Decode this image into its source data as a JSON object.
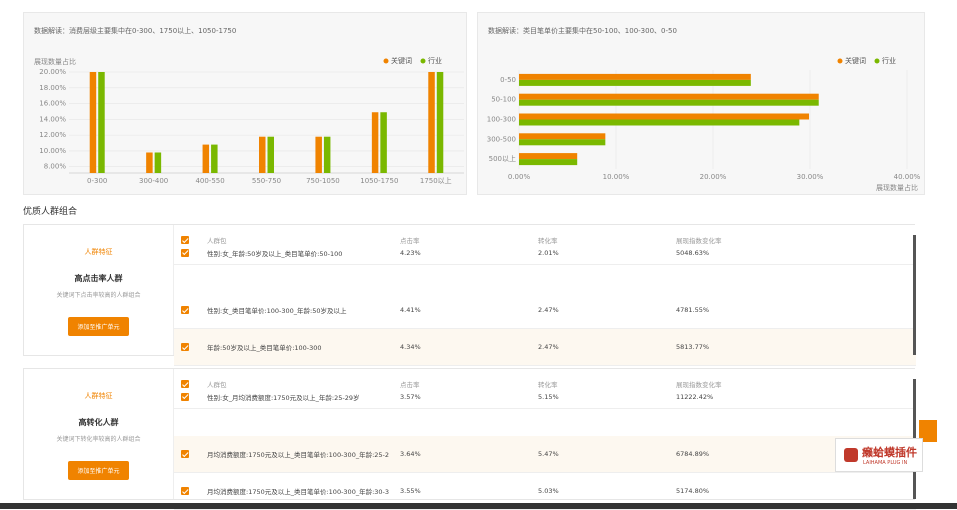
{
  "chart_data": [
    {
      "type": "bar",
      "title": "数据解读：消费层级主要集中在0-300、1750以上、1050-1750",
      "y_label": "展现数量占比",
      "categories": [
        "0-300",
        "300-400",
        "400-550",
        "550-750",
        "750-1050",
        "1050-1750",
        "1750以上"
      ],
      "series": [
        {
          "name": "关键词",
          "color": "#f08300",
          "values": [
            20,
            9.8,
            10.8,
            11.8,
            11.8,
            14.9,
            20
          ]
        },
        {
          "name": "行业",
          "color": "#7ab800",
          "values": [
            20,
            9.8,
            10.8,
            11.8,
            11.8,
            14.9,
            20
          ]
        }
      ],
      "ylim": [
        7.2,
        20
      ],
      "yticks": [
        {
          "value": 8,
          "label": "8.00%"
        },
        {
          "value": 10,
          "label": "10.00%"
        },
        {
          "value": 12,
          "label": "12.00%"
        },
        {
          "value": 14,
          "label": "14.00%"
        },
        {
          "value": 16,
          "label": "16.00%"
        },
        {
          "value": 18,
          "label": "18.00%"
        },
        {
          "value": 20,
          "label": "20.00%"
        }
      ]
    },
    {
      "type": "barh",
      "title": "数据解读：类目笔单价主要集中在50-100、100-300、0-50",
      "x_label": "展现数量占比",
      "categories": [
        "0-50",
        "50-100",
        "100-300",
        "300-500",
        "500以上"
      ],
      "series": [
        {
          "name": "关键词",
          "color": "#f08300",
          "values": [
            23.9,
            30.9,
            29.9,
            8.9,
            6
          ]
        },
        {
          "name": "行业",
          "color": "#7ab800",
          "values": [
            23.9,
            30.9,
            28.9,
            8.9,
            6
          ]
        }
      ],
      "xlim": [
        0,
        40
      ],
      "xticks": [
        {
          "value": 0,
          "label": "0.00%"
        },
        {
          "value": 10,
          "label": "10.00%"
        },
        {
          "value": 20,
          "label": "20.00%"
        },
        {
          "value": 30,
          "label": "30.00%"
        },
        {
          "value": 40,
          "label": "40.00%"
        }
      ]
    }
  ],
  "section_title": "优质人群组合",
  "groups": [
    {
      "feature_label": "人群特征",
      "name": "高点击率人群",
      "description": "关键词下点击率较高的人群组合",
      "button": "添加至推广单元",
      "table": {
        "headers": [
          "人群包",
          "点击率",
          "转化率",
          "展现指数变化率"
        ],
        "rows": [
          [
            "性别:女_年龄:50岁及以上_类目笔单价:50-100",
            "4.23%",
            "2.01%",
            "5048.63%"
          ],
          [
            "性别:女_类目笔单价:100-300_年龄:50岁及以上",
            "4.41%",
            "2.47%",
            "4781.55%"
          ],
          [
            "年龄:50岁及以上_类目笔单价:100-300",
            "4.34%",
            "2.47%",
            "5813.77%"
          ]
        ]
      }
    },
    {
      "feature_label": "人群特征",
      "name": "高转化人群",
      "description": "关键词下转化率较高的人群组合",
      "button": "添加至推广单元",
      "table": {
        "headers": [
          "人群包",
          "点击率",
          "转化率",
          "展现指数变化率"
        ],
        "rows": [
          [
            "性别:女_月均消费额度:1750元及以上_年龄:25-29岁",
            "3.57%",
            "5.15%",
            "11222.42%"
          ],
          [
            "月均消费额度:1750元及以上_类目笔单价:100-300_年龄:25-2",
            "3.64%",
            "5.47%",
            "6784.89%"
          ],
          [
            "月均消费额度:1750元及以上_类目笔单价:100-300_年龄:30-3",
            "3.55%",
            "5.03%",
            "5174.80%"
          ]
        ]
      }
    }
  ],
  "plugin": {
    "name": "癞蛤蟆插件",
    "subtitle": "LAIHAMA PLUG IN"
  }
}
